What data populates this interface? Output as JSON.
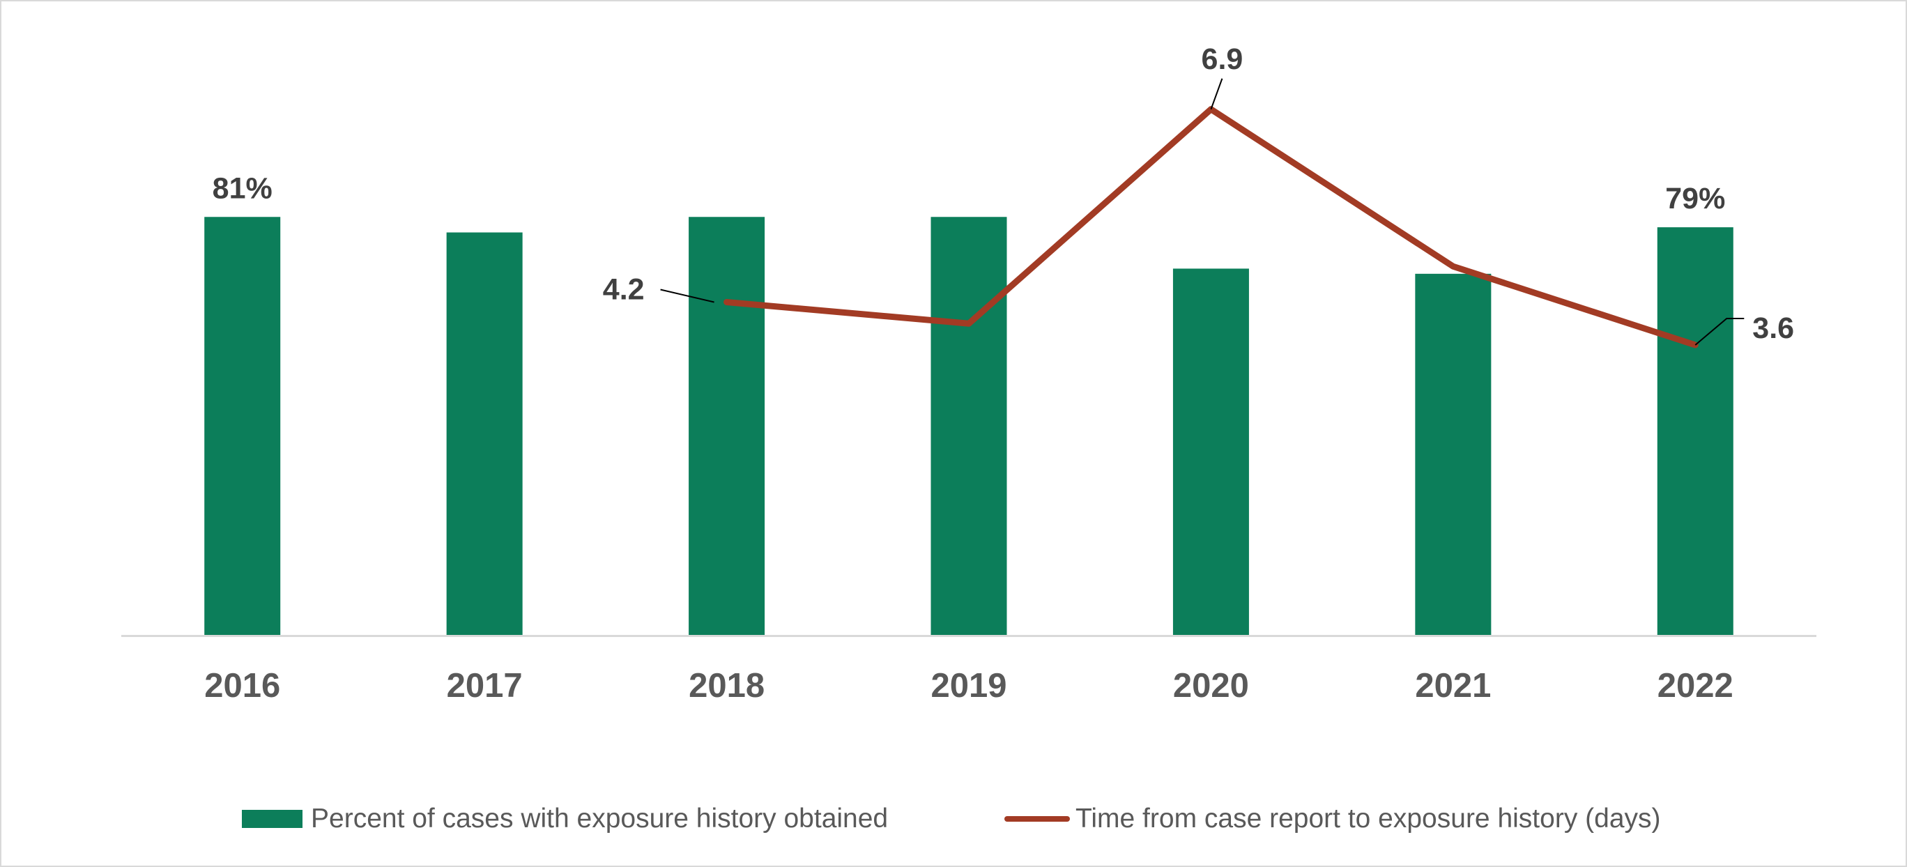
{
  "colors": {
    "bar": "#0c7e5a",
    "line": "#a23b24",
    "axis": "#d9d9d9",
    "label": "#404040",
    "tick": "#595959"
  },
  "legend": {
    "bar_label": "Percent of cases with exposure history obtained",
    "line_label": "Time from case report to exposure history (days)"
  },
  "chart_data": {
    "type": "bar",
    "categories": [
      "2016",
      "2017",
      "2018",
      "2019",
      "2020",
      "2021",
      "2022"
    ],
    "series": [
      {
        "name": "Percent of cases with exposure history obtained",
        "type": "bar",
        "axis": "primary",
        "values": [
          81,
          78,
          81,
          81,
          71,
          70,
          79
        ],
        "data_labels": [
          "81%",
          null,
          null,
          null,
          null,
          null,
          "79%"
        ]
      },
      {
        "name": "Time from case report to exposure history (days)",
        "type": "line",
        "axis": "secondary",
        "x": [
          "2018",
          "2019",
          "2020",
          "2021",
          "2022"
        ],
        "values": [
          4.2,
          3.9,
          6.9,
          4.7,
          3.6
        ],
        "data_labels": [
          "4.2",
          null,
          "6.9",
          null,
          "3.6"
        ]
      }
    ],
    "ylim_primary": [
      0,
      100
    ],
    "ylim_secondary": [
      0,
      10
    ],
    "gridlines": false,
    "legend_position": "bottom",
    "title": "",
    "xlabel": "",
    "ylabel": ""
  }
}
